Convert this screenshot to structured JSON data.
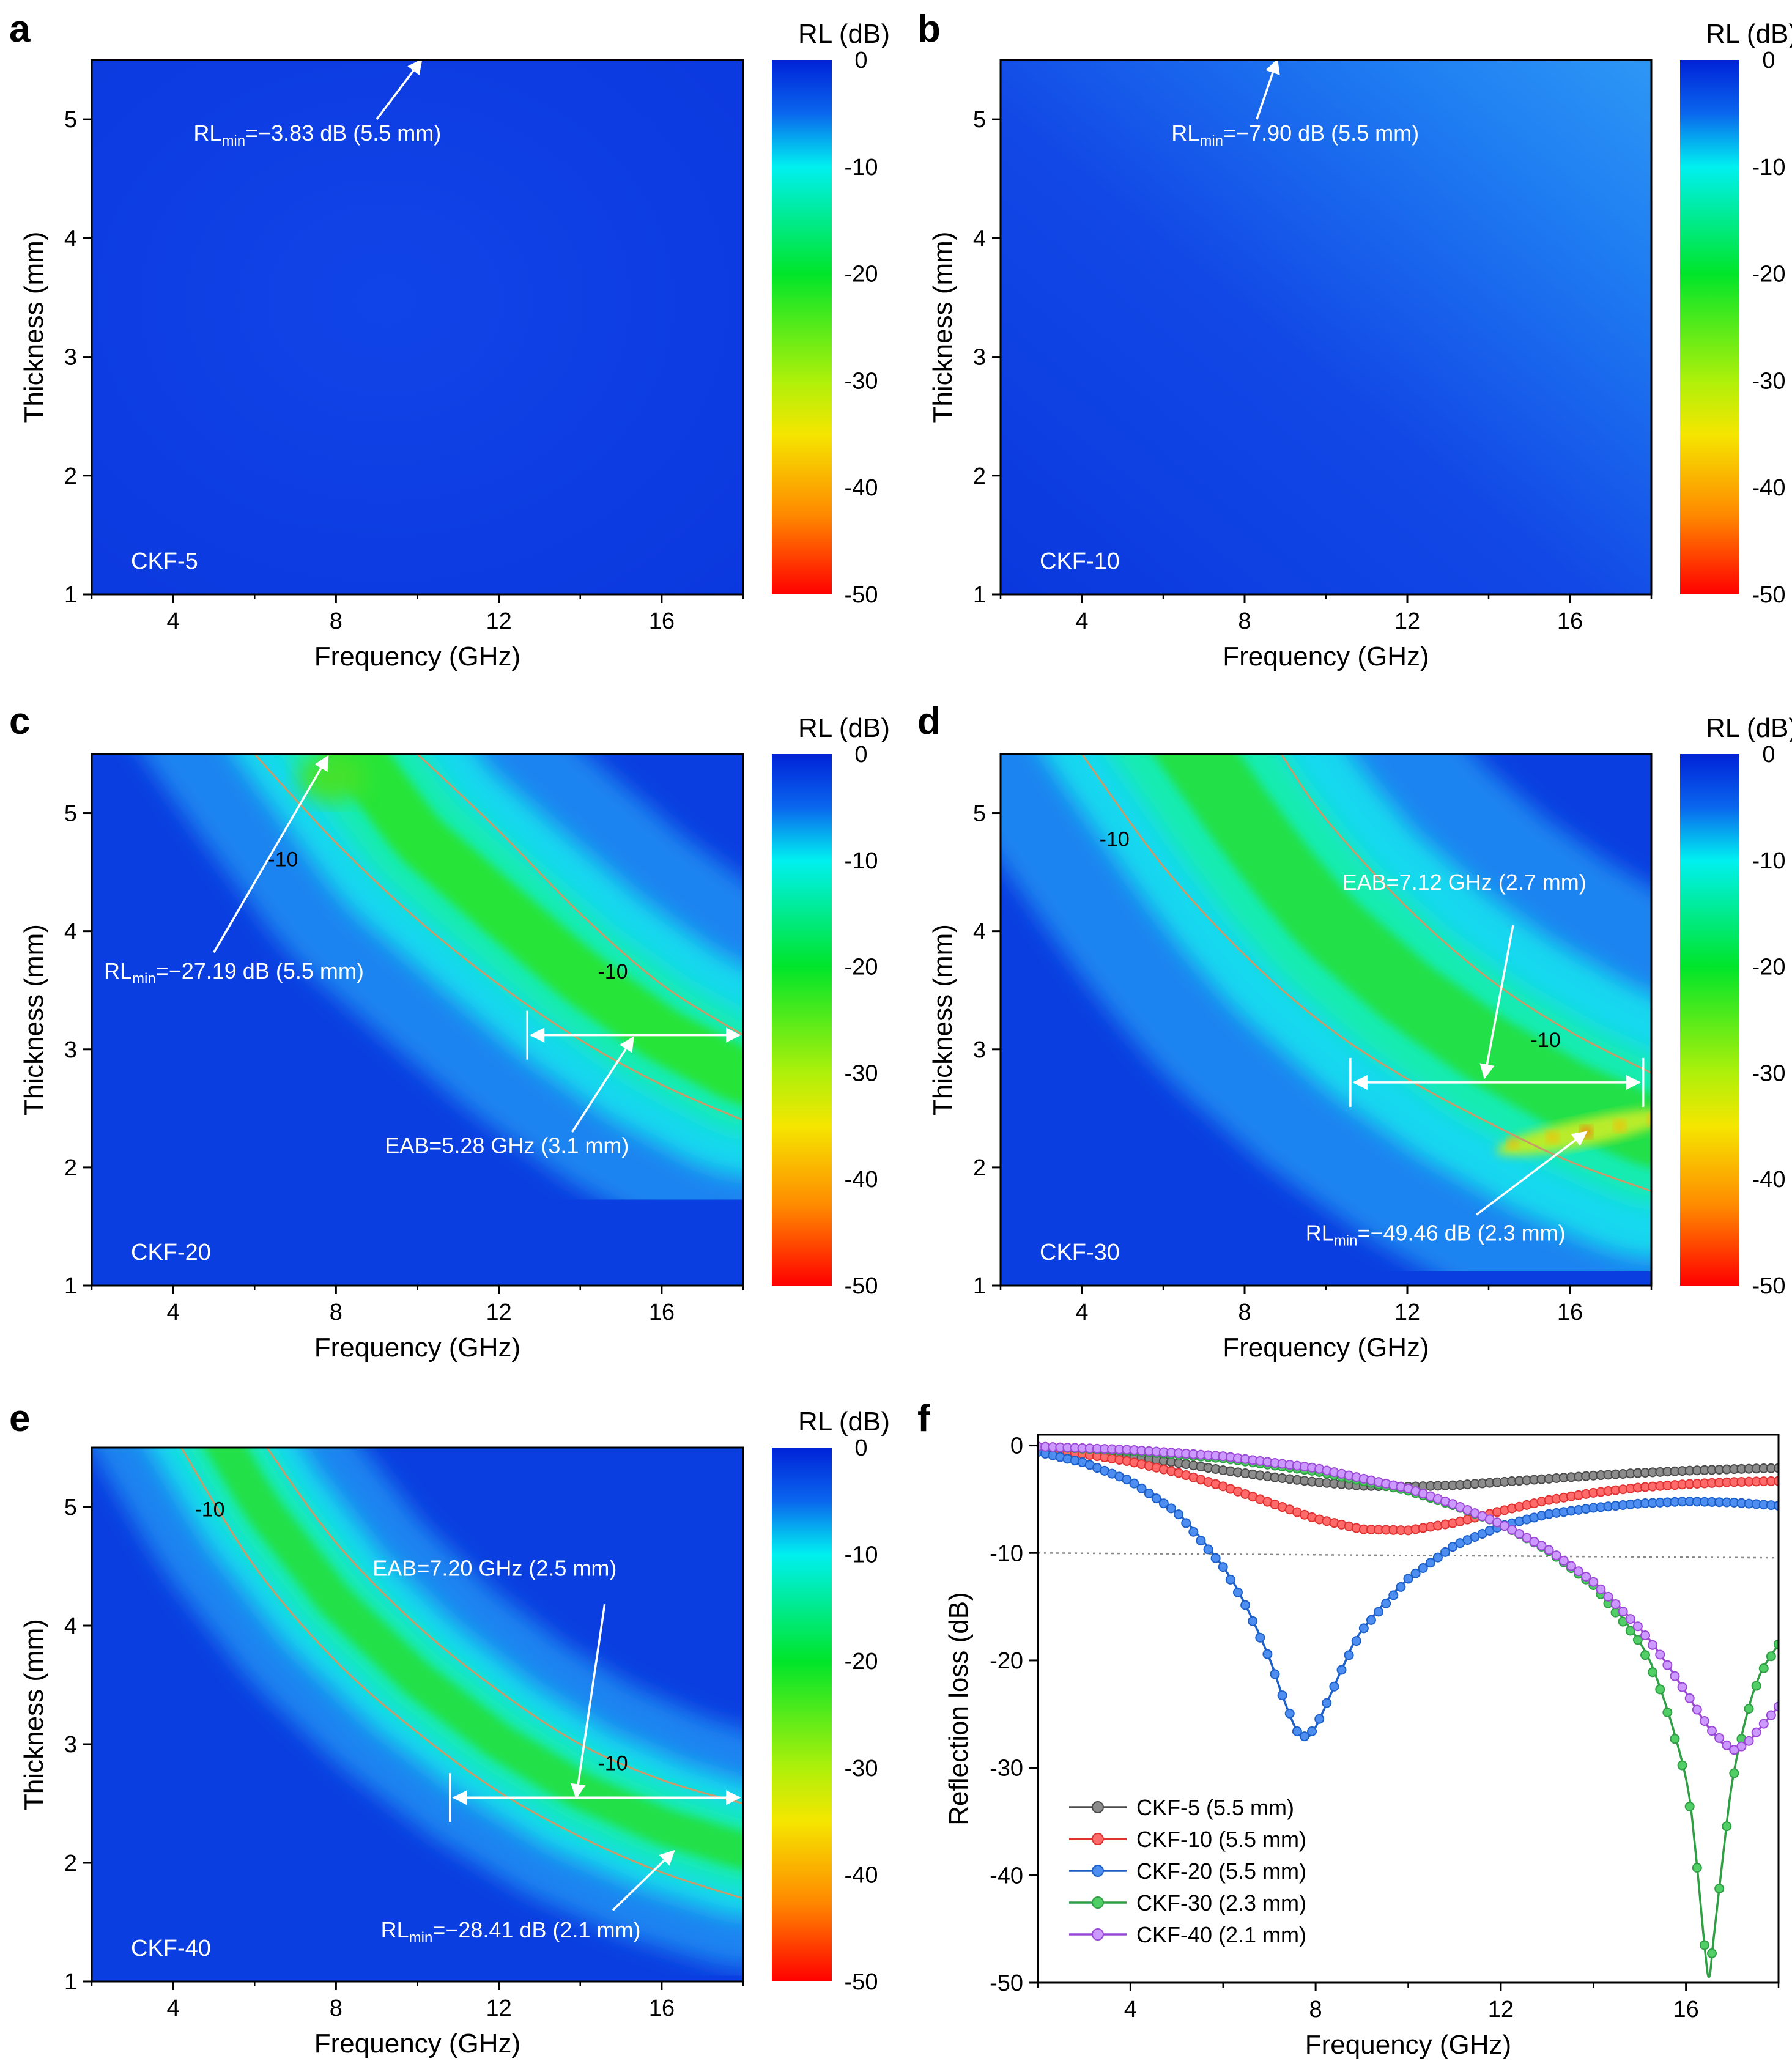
{
  "chart_data": [
    {
      "panel": "a",
      "type": "heatmap",
      "sample": "CKF-5",
      "xlabel": "Frequency (GHz)",
      "ylabel": "Thickness (mm)",
      "colorbar_title": "RL (dB)",
      "xlim": [
        2,
        18
      ],
      "ylim": [
        1,
        5.5
      ],
      "xticks": [
        4,
        8,
        12,
        16
      ],
      "yticks": [
        1,
        2,
        3,
        4,
        5
      ],
      "cbar_ticks": [
        0,
        -10,
        -20,
        -30,
        -40,
        -50
      ],
      "cbar_range": [
        -50,
        0
      ],
      "rl_min": -3.83,
      "annotations": [
        {
          "kind": "rlmin",
          "value": "−3.83 dB (5.5 mm)",
          "label_x": 4.5,
          "label_y": 4.82,
          "arrow_from": [
            9.0,
            5.0
          ],
          "arrow_to": [
            10.1,
            5.5
          ]
        }
      ],
      "contours": [],
      "contour_labels": [],
      "eab_bars": []
    },
    {
      "panel": "b",
      "type": "heatmap",
      "sample": "CKF-10",
      "xlabel": "Frequency (GHz)",
      "ylabel": "Thickness (mm)",
      "colorbar_title": "RL (dB)",
      "xlim": [
        2,
        18
      ],
      "ylim": [
        1,
        5.5
      ],
      "xticks": [
        4,
        8,
        12,
        16
      ],
      "yticks": [
        1,
        2,
        3,
        4,
        5
      ],
      "cbar_ticks": [
        0,
        -10,
        -20,
        -30,
        -40,
        -50
      ],
      "cbar_range": [
        -50,
        0
      ],
      "rl_min": -7.9,
      "annotations": [
        {
          "kind": "rlmin",
          "value": "−7.90 dB (5.5 mm)",
          "label_x": 6.2,
          "label_y": 4.82,
          "arrow_from": [
            8.3,
            5.0
          ],
          "arrow_to": [
            8.8,
            5.5
          ]
        }
      ],
      "contours": [],
      "contour_labels": [],
      "eab_bars": []
    },
    {
      "panel": "c",
      "type": "heatmap",
      "sample": "CKF-20",
      "xlabel": "Frequency (GHz)",
      "ylabel": "Thickness (mm)",
      "colorbar_title": "RL (dB)",
      "xlim": [
        2,
        18
      ],
      "ylim": [
        1,
        5.5
      ],
      "xticks": [
        4,
        8,
        12,
        16
      ],
      "yticks": [
        1,
        2,
        3,
        4,
        5
      ],
      "cbar_ticks": [
        0,
        -10,
        -20,
        -30,
        -40,
        -50
      ],
      "cbar_range": [
        -50,
        0
      ],
      "rl_min": -27.19,
      "annotations": [
        {
          "kind": "rlmin",
          "value": "−27.19 dB (5.5 mm)",
          "label_x": 2.3,
          "label_y": 3.6,
          "arrow_from": [
            5.0,
            3.82
          ],
          "arrow_to": [
            7.8,
            5.48
          ]
        },
        {
          "kind": "eab",
          "value": "5.28 GHz (3.1 mm)",
          "label_x": 9.2,
          "label_y": 2.12,
          "arrow_from": [
            13.8,
            2.3
          ],
          "arrow_to": [
            15.3,
            3.1
          ]
        }
      ],
      "contours": [
        {
          "level": -10,
          "points": [
            [
              6.0,
              5.5
            ],
            [
              8,
              4.75
            ],
            [
              10,
              4.1
            ],
            [
              12,
              3.55
            ],
            [
              14,
              3.08
            ],
            [
              16,
              2.7
            ],
            [
              18,
              2.4
            ]
          ]
        },
        {
          "level": -10,
          "points": [
            [
              10.0,
              5.5
            ],
            [
              12,
              4.85
            ],
            [
              14,
              4.15
            ],
            [
              16,
              3.55
            ],
            [
              18,
              3.12
            ]
          ]
        }
      ],
      "contour_labels": [
        {
          "text": "-10",
          "x": 6.7,
          "y": 4.55
        },
        {
          "text": "-10",
          "x": 14.8,
          "y": 3.6
        }
      ],
      "eab_bars": [
        {
          "x1": 12.7,
          "x2": 18.0,
          "y": 3.12
        }
      ]
    },
    {
      "panel": "d",
      "type": "heatmap",
      "sample": "CKF-30",
      "xlabel": "Frequency (GHz)",
      "ylabel": "Thickness (mm)",
      "colorbar_title": "RL (dB)",
      "xlim": [
        2,
        18
      ],
      "ylim": [
        1,
        5.5
      ],
      "xticks": [
        4,
        8,
        12,
        16
      ],
      "yticks": [
        1,
        2,
        3,
        4,
        5
      ],
      "cbar_ticks": [
        0,
        -10,
        -20,
        -30,
        -40,
        -50
      ],
      "cbar_range": [
        -50,
        0
      ],
      "rl_min": -49.46,
      "annotations": [
        {
          "kind": "eab",
          "value": "7.12 GHz (2.7 mm)",
          "label_x": 10.4,
          "label_y": 4.35,
          "arrow_from": [
            14.6,
            4.05
          ],
          "arrow_to": [
            13.9,
            2.76
          ]
        },
        {
          "kind": "rlmin",
          "value": "−49.46 dB (2.3 mm)",
          "label_x": 9.5,
          "label_y": 1.38,
          "arrow_from": [
            13.7,
            1.6
          ],
          "arrow_to": [
            16.4,
            2.3
          ]
        }
      ],
      "contours": [
        {
          "level": -10,
          "points": [
            [
              4.0,
              5.5
            ],
            [
              6,
              4.55
            ],
            [
              8,
              3.8
            ],
            [
              10,
              3.2
            ],
            [
              12,
              2.75
            ],
            [
              14,
              2.38
            ],
            [
              16,
              2.05
            ],
            [
              18,
              1.8
            ]
          ]
        },
        {
          "level": -10,
          "points": [
            [
              8.9,
              5.5
            ],
            [
              10,
              4.95
            ],
            [
              12,
              4.2
            ],
            [
              14,
              3.6
            ],
            [
              16,
              3.15
            ],
            [
              18,
              2.8
            ]
          ]
        }
      ],
      "contour_labels": [
        {
          "text": "-10",
          "x": 4.8,
          "y": 4.72
        },
        {
          "text": "-10",
          "x": 15.4,
          "y": 3.02
        }
      ],
      "eab_bars": [
        {
          "x1": 10.6,
          "x2": 17.8,
          "y": 2.72
        }
      ],
      "hotspot": {
        "x": 16.4,
        "y": 2.3
      }
    },
    {
      "panel": "e",
      "type": "heatmap",
      "sample": "CKF-40",
      "xlabel": "Frequency (GHz)",
      "ylabel": "Thickness (mm)",
      "colorbar_title": "RL (dB)",
      "xlim": [
        2,
        18
      ],
      "ylim": [
        1,
        5.5
      ],
      "xticks": [
        4,
        8,
        12,
        16
      ],
      "yticks": [
        1,
        2,
        3,
        4,
        5
      ],
      "cbar_ticks": [
        0,
        -10,
        -20,
        -30,
        -40,
        -50
      ],
      "cbar_range": [
        -50,
        0
      ],
      "rl_min": -28.41,
      "annotations": [
        {
          "kind": "eab",
          "value": "7.20 GHz (2.5 mm)",
          "label_x": 8.9,
          "label_y": 4.42,
          "arrow_from": [
            14.6,
            4.18
          ],
          "arrow_to": [
            13.9,
            2.55
          ]
        },
        {
          "kind": "rlmin",
          "value": "−28.41 dB (2.1 mm)",
          "label_x": 9.1,
          "label_y": 1.37,
          "arrow_from": [
            14.8,
            1.6
          ],
          "arrow_to": [
            16.3,
            2.1
          ]
        }
      ],
      "contours": [
        {
          "level": -10,
          "points": [
            [
              4.2,
              5.5
            ],
            [
              6,
              4.5
            ],
            [
              8,
              3.7
            ],
            [
              10,
              3.1
            ],
            [
              12,
              2.6
            ],
            [
              14,
              2.22
            ],
            [
              16,
              1.92
            ],
            [
              18,
              1.7
            ]
          ]
        },
        {
          "level": -10,
          "points": [
            [
              6.3,
              5.5
            ],
            [
              8,
              4.7
            ],
            [
              10,
              4.0
            ],
            [
              12,
              3.45
            ],
            [
              14,
              3.0
            ],
            [
              16,
              2.7
            ],
            [
              18,
              2.5
            ]
          ]
        }
      ],
      "contour_labels": [
        {
          "text": "-10",
          "x": 4.9,
          "y": 4.92
        },
        {
          "text": "-10",
          "x": 14.8,
          "y": 2.78
        }
      ],
      "eab_bars": [
        {
          "x1": 10.8,
          "x2": 18.0,
          "y": 2.55
        }
      ]
    },
    {
      "panel": "f",
      "type": "line",
      "xlabel": "Frequency (GHz)",
      "ylabel": "Reflection loss (dB)",
      "xlim": [
        2,
        18
      ],
      "ylim": [
        -50,
        1
      ],
      "xticks": [
        4,
        8,
        12,
        16
      ],
      "yticks": [
        0,
        -10,
        -20,
        -30,
        -40,
        -50
      ],
      "reference_line": -10,
      "series": [
        {
          "name": "CKF-5 (5.5 mm)",
          "color": "#4a4a4a",
          "fill": "#8c8c8c",
          "x": [
            2,
            3,
            4,
            5,
            6,
            7,
            8,
            9,
            10,
            11,
            12,
            13,
            14,
            15,
            16,
            17,
            18
          ],
          "y": [
            -0.2,
            -0.5,
            -1.0,
            -1.6,
            -2.3,
            -2.9,
            -3.4,
            -3.75,
            -3.83,
            -3.7,
            -3.4,
            -3.1,
            -2.8,
            -2.55,
            -2.35,
            -2.2,
            -2.1
          ]
        },
        {
          "name": "CKF-10 (5.5 mm)",
          "color": "#e03131",
          "fill": "#ff6b6b",
          "x": [
            2,
            3,
            4,
            5,
            6,
            7,
            8,
            9,
            10,
            11,
            12,
            13,
            14,
            15,
            16,
            17,
            18
          ],
          "y": [
            -0.3,
            -0.8,
            -1.5,
            -2.5,
            -3.8,
            -5.3,
            -6.8,
            -7.8,
            -7.9,
            -7.2,
            -6.1,
            -5.1,
            -4.4,
            -3.9,
            -3.6,
            -3.4,
            -3.3
          ]
        },
        {
          "name": "CKF-20 (5.5 mm)",
          "color": "#1c5fc9",
          "fill": "#4d8ef0",
          "x": [
            2,
            3,
            4,
            5,
            6,
            6.5,
            7,
            7.3,
            7.6,
            7.8,
            8,
            8.3,
            8.6,
            9,
            10,
            11,
            12,
            13,
            14,
            15,
            16,
            17,
            18
          ],
          "y": [
            -0.6,
            -1.6,
            -3.3,
            -6.2,
            -11.3,
            -15.0,
            -19.8,
            -23.5,
            -26.6,
            -27.19,
            -26.2,
            -23.4,
            -20.5,
            -17.2,
            -12.4,
            -9.3,
            -7.5,
            -6.4,
            -5.8,
            -5.4,
            -5.2,
            -5.3,
            -5.6
          ]
        },
        {
          "name": "CKF-30 (2.3 mm)",
          "color": "#2f9e44",
          "fill": "#51cf66",
          "x": [
            2,
            4,
            6,
            8,
            10,
            11,
            12,
            13,
            14,
            15,
            15.5,
            16,
            16.2,
            16.4,
            16.5,
            16.6,
            16.8,
            17,
            17.3,
            17.6,
            18
          ],
          "y": [
            -0.1,
            -0.5,
            -1.2,
            -2.4,
            -4.2,
            -5.6,
            -7.3,
            -9.7,
            -13.0,
            -18.3,
            -23.3,
            -31.0,
            -37.5,
            -46.5,
            -49.46,
            -45.8,
            -38.2,
            -31.3,
            -25.3,
            -21.3,
            -18.5
          ]
        },
        {
          "name": "CKF-40 (2.1 mm)",
          "color": "#9c48d6",
          "fill": "#cc99ff",
          "x": [
            2,
            4,
            6,
            8,
            10,
            11,
            12,
            13,
            14,
            15,
            15.5,
            16,
            16.5,
            17,
            17.3,
            17.6,
            18
          ],
          "y": [
            -0.1,
            -0.4,
            -1.0,
            -2.1,
            -4.0,
            -5.5,
            -7.3,
            -9.6,
            -12.7,
            -17.0,
            -19.8,
            -23.0,
            -26.3,
            -28.41,
            -27.8,
            -26.3,
            -24.3
          ]
        }
      ]
    }
  ]
}
